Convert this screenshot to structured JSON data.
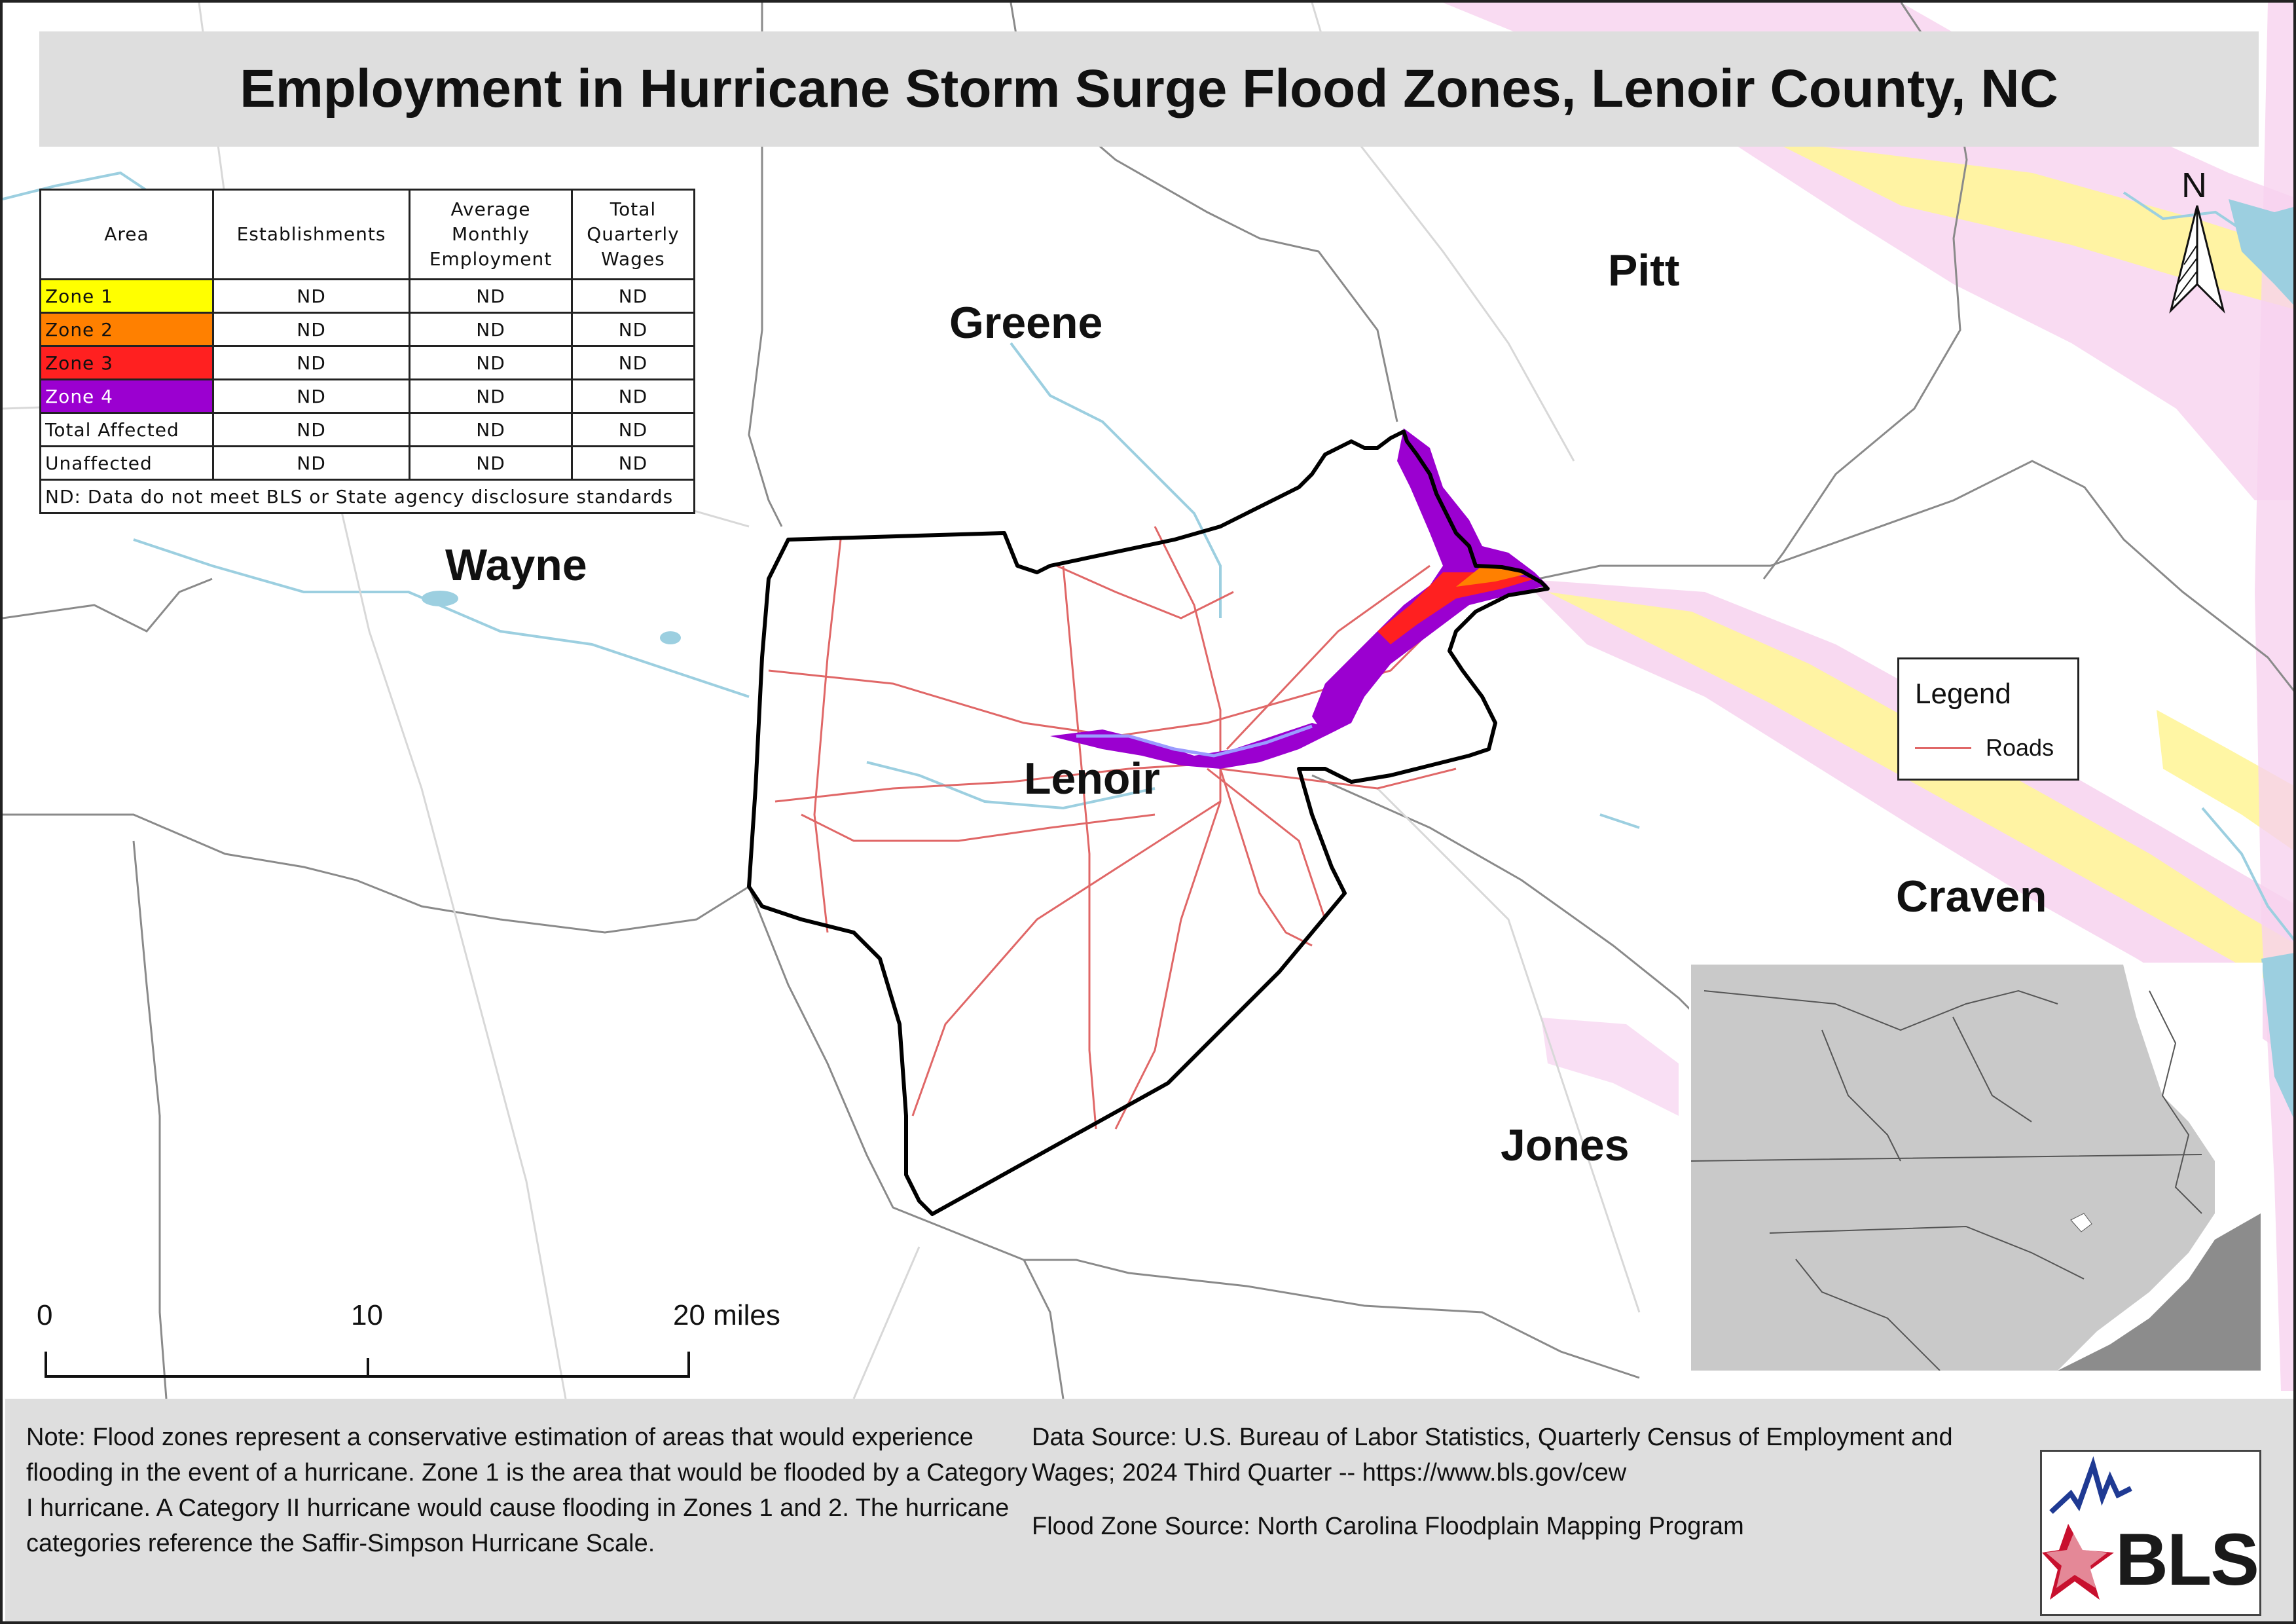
{
  "title": "Employment in Hurricane Storm Surge Flood Zones, Lenoir County, NC",
  "counties": [
    {
      "name": "Greene",
      "key": "greene"
    },
    {
      "name": "Pitt",
      "key": "pitt"
    },
    {
      "name": "Wayne",
      "key": "wayne"
    },
    {
      "name": "Lenoir",
      "key": "lenoir"
    },
    {
      "name": "Craven",
      "key": "craven"
    },
    {
      "name": "Jones",
      "key": "jones"
    }
  ],
  "table": {
    "headers": [
      "Area",
      "Establishments",
      "Average Monthly Employment",
      "Total Quarterly Wages"
    ],
    "rows": [
      {
        "area": "Zone 1",
        "color": "#ffff00",
        "text_color": "#111111",
        "establishments": "ND",
        "employment": "ND",
        "wages": "ND"
      },
      {
        "area": "Zone 2",
        "color": "#ff8000",
        "text_color": "#111111",
        "establishments": "ND",
        "employment": "ND",
        "wages": "ND"
      },
      {
        "area": "Zone 3",
        "color": "#ff2020",
        "text_color": "#111111",
        "establishments": "ND",
        "employment": "ND",
        "wages": "ND"
      },
      {
        "area": "Zone 4",
        "color": "#9b00d0",
        "text_color": "#ffffff",
        "establishments": "ND",
        "employment": "ND",
        "wages": "ND"
      },
      {
        "area": "Total Affected",
        "color": "#ffffff",
        "text_color": "#111111",
        "establishments": "ND",
        "employment": "ND",
        "wages": "ND"
      },
      {
        "area": "Unaffected",
        "color": "#ffffff",
        "text_color": "#111111",
        "establishments": "ND",
        "employment": "ND",
        "wages": "ND"
      }
    ],
    "note": "ND: Data do not meet BLS or State agency disclosure standards"
  },
  "legend": {
    "title": "Legend",
    "items": [
      {
        "label": "Roads",
        "color": "#e06767"
      }
    ]
  },
  "scale_bar": {
    "labels": [
      "0",
      "10",
      "20 miles"
    ]
  },
  "north_arrow": {
    "label": "N"
  },
  "footer": {
    "note": "Note: Flood zones represent a conservative estimation of areas that would experience flooding in the event of a hurricane. Zone 1 is the area that would be flooded by a Category I hurricane. A Category II hurricane would cause flooding in Zones 1 and 2. The hurricane categories reference the Saffir-Simpson Hurricane Scale.",
    "data_source": "Data Source: U.S. Bureau of Labor Statistics, Quarterly Census of Employment and Wages; 2024 Third Quarter -- https://www.bls.gov/cew",
    "flood_source": "Flood Zone Source: North Carolina Floodplain Mapping Program"
  },
  "logo": {
    "text": "BLS"
  },
  "colors": {
    "zone1": "#ffff00",
    "zone2": "#ff8000",
    "zone3": "#ff2020",
    "zone4": "#9b00d0",
    "roads": "#e06767",
    "water": "#9ccfe0",
    "county_border": "#8a8a8a",
    "lenoir_border": "#000000"
  }
}
